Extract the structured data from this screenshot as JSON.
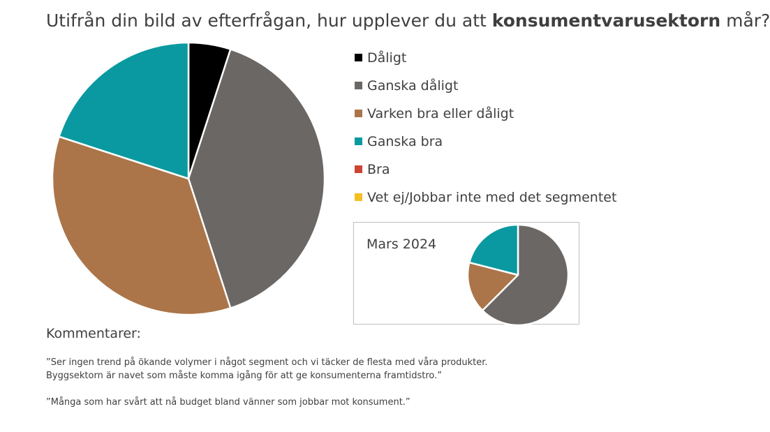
{
  "title": {
    "before": "Utifrån din bild av efterfrågan, hur upplever du att ",
    "bold": "konsumentvarusektorn",
    "after": " mår?"
  },
  "chart_data": [
    {
      "type": "pie",
      "title": "",
      "categories": [
        "Dåligt",
        "Ganska dåligt",
        "Varken bra eller dåligt",
        "Ganska bra",
        "Bra",
        "Vet ej/Jobbar inte med det segmentet"
      ],
      "values": [
        5,
        40,
        35,
        20,
        0,
        0
      ],
      "colors": [
        "#000000",
        "#6a6765",
        "#ab7549",
        "#0a99a0",
        "#cd4433",
        "#f6be21"
      ],
      "legend_position": "right"
    },
    {
      "type": "pie",
      "title": "Mars 2024",
      "categories": [
        "Dåligt",
        "Ganska dåligt",
        "Varken bra eller dåligt",
        "Ganska bra",
        "Bra",
        "Vet ej/Jobbar inte med det segmentet"
      ],
      "values": [
        0,
        62.5,
        16.5,
        21,
        0,
        0
      ],
      "colors": [
        "#000000",
        "#6a6765",
        "#ab7549",
        "#0a99a0",
        "#cd4433",
        "#f6be21"
      ],
      "legend_position": "none"
    }
  ],
  "comments": {
    "heading": "Kommentarer:",
    "items": [
      "”Ser ingen trend på ökande volymer i något segment och vi täcker de flesta med våra produkter.",
      "Byggsektorn är navet som måste komma igång för att ge konsumenterna framtidstro.”",
      "”Många som har svårt att nå budget bland vänner som jobbar mot konsument.”"
    ]
  }
}
